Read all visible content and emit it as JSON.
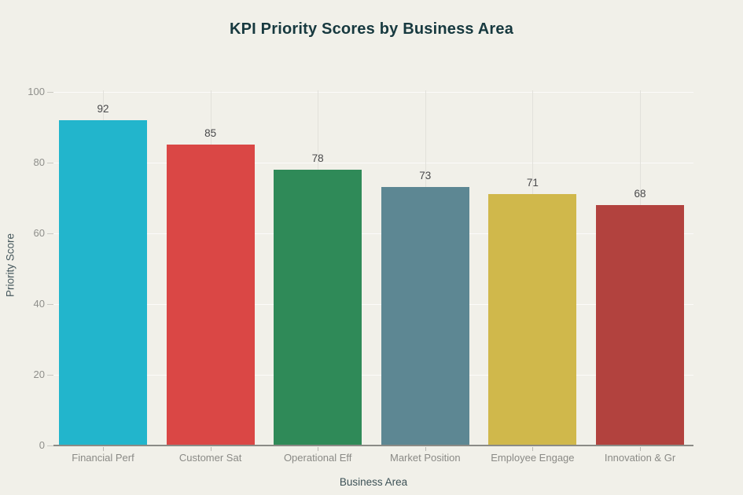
{
  "chart_data": {
    "type": "bar",
    "title": "KPI Priority Scores by Business Area",
    "xlabel": "Business Area",
    "ylabel": "Priority Score",
    "categories": [
      "Financial Perf",
      "Customer Sat",
      "Operational Eff",
      "Market Position",
      "Employee Engage",
      "Innovation & Gr"
    ],
    "values": [
      92,
      85,
      78,
      73,
      71,
      68
    ],
    "bar_colors": [
      "#22b5cc",
      "#da4745",
      "#2f8a58",
      "#5d8793",
      "#d0b84b",
      "#b2423e"
    ],
    "value_labels": [
      92,
      85,
      78,
      73,
      71,
      68
    ],
    "ylim": [
      0,
      100
    ],
    "yticks": [
      0,
      20,
      40,
      60,
      80,
      100
    ],
    "grid": "on",
    "legend": "none",
    "background_color": "#f1f0e9",
    "title_color": "#17393f",
    "axis_label_color": "#3c5156",
    "tick_label_color": "#8a8a86"
  }
}
